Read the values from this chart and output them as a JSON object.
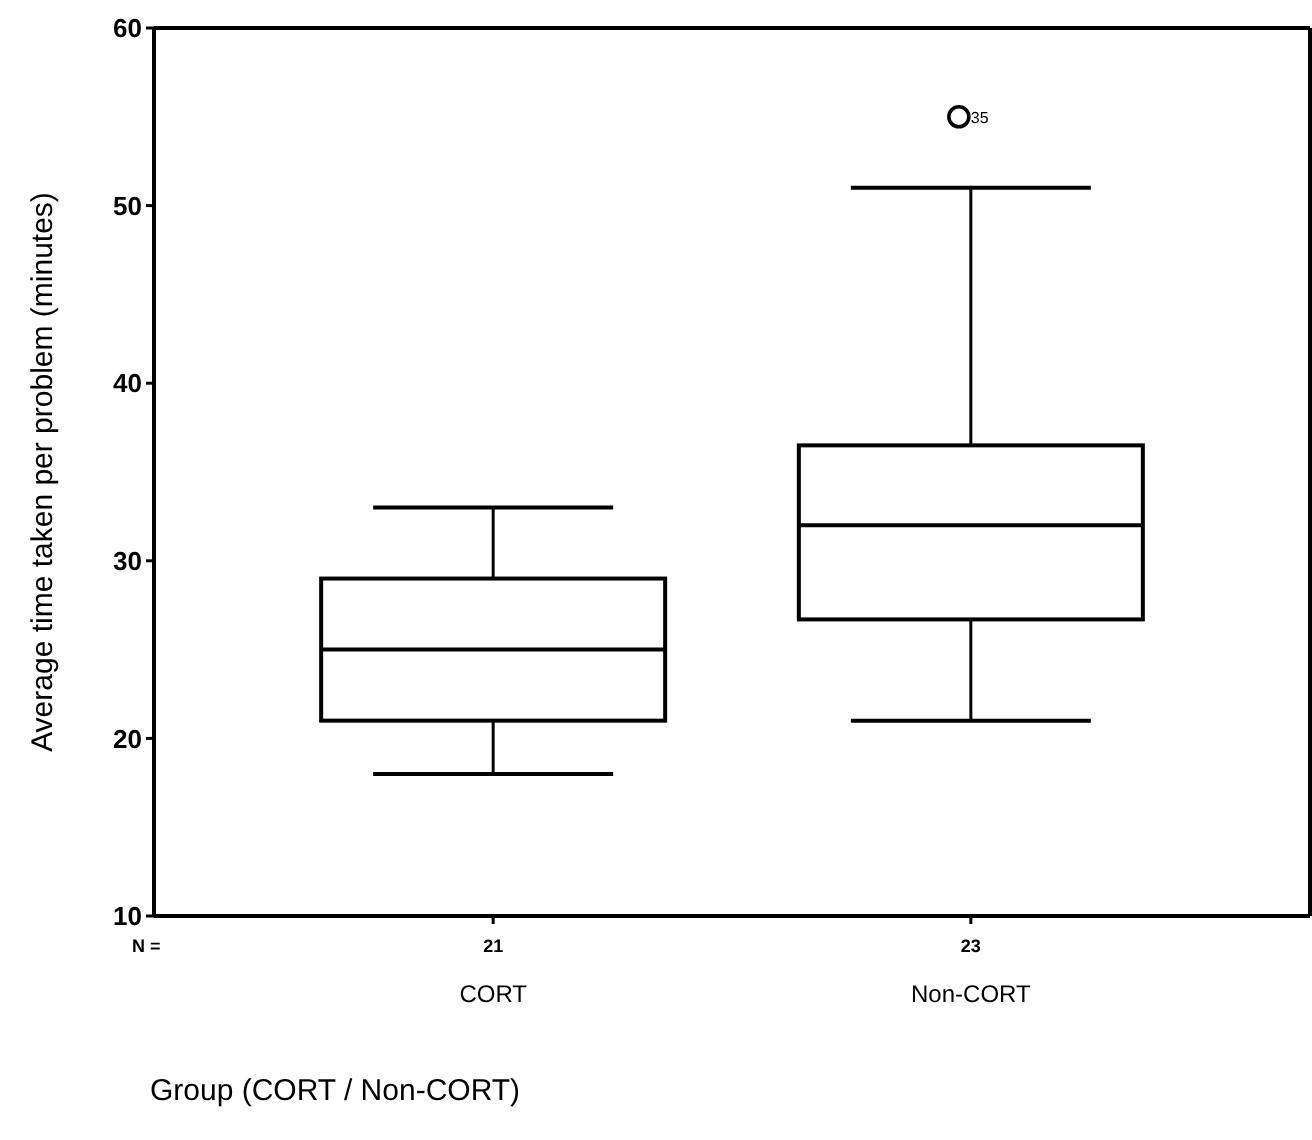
{
  "chart_data": {
    "type": "box",
    "ylabel": "Average time taken per problem (minutes)",
    "xlabel": "Group (CORT / Non-CORT)",
    "categories": [
      "CORT",
      "Non-CORT"
    ],
    "boxes": [
      {
        "low": 18,
        "q1": 21,
        "median": 25,
        "q3": 29,
        "high": 33
      },
      {
        "low": 21,
        "q1": 26.7,
        "median": 32,
        "q3": 36.5,
        "high": 51,
        "outliers": [
          55
        ]
      }
    ],
    "ylim": [
      10,
      60
    ],
    "yticks": [
      10,
      20,
      30,
      40,
      50,
      60
    ],
    "grid": false,
    "annotations": [
      "N =",
      "21",
      "23",
      "35"
    ]
  }
}
